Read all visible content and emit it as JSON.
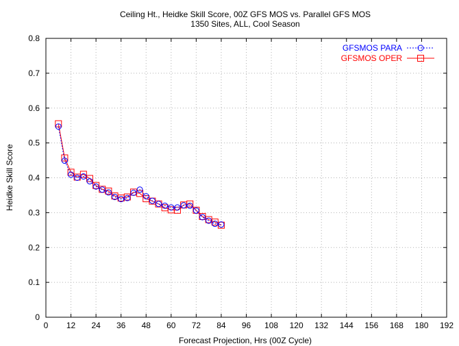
{
  "chart_data": {
    "type": "line",
    "title": "Ceiling Ht., Heidke Skill Score, 00Z GFS MOS vs. Parallel GFS MOS",
    "subtitle": "1350 Sites, ALL, Cool Season",
    "xlabel": "Forecast Projection, Hrs (00Z Cycle)",
    "ylabel": "Heidke Skill Score",
    "xlim": [
      0,
      192
    ],
    "ylim": [
      0,
      0.8
    ],
    "xticks": [
      "0",
      "12",
      "24",
      "36",
      "48",
      "60",
      "72",
      "84",
      "96",
      "108",
      "120",
      "132",
      "144",
      "156",
      "168",
      "180",
      "192"
    ],
    "yticks": [
      "0",
      "0.1",
      "0.2",
      "0.3",
      "0.4",
      "0.5",
      "0.6",
      "0.7",
      "0.8"
    ],
    "grid": true,
    "legend_position": "top-right",
    "x": [
      6,
      9,
      12,
      15,
      18,
      21,
      24,
      27,
      30,
      33,
      36,
      39,
      42,
      45,
      48,
      51,
      54,
      57,
      60,
      63,
      66,
      69,
      72,
      75,
      78,
      81,
      84
    ],
    "series": [
      {
        "name": "GFSMOS PARA",
        "color": "#0000ff",
        "marker": "circle",
        "line_style": "dotted",
        "values": [
          0.547,
          0.449,
          0.409,
          0.4,
          0.404,
          0.39,
          0.375,
          0.366,
          0.358,
          0.345,
          0.339,
          0.342,
          0.357,
          0.366,
          0.347,
          0.334,
          0.325,
          0.32,
          0.315,
          0.315,
          0.321,
          0.32,
          0.306,
          0.287,
          0.277,
          0.268,
          0.266
        ]
      },
      {
        "name": "GFSMOS OPER",
        "color": "#ff0000",
        "marker": "square",
        "line_style": "solid",
        "values": [
          0.555,
          0.457,
          0.416,
          0.402,
          0.41,
          0.398,
          0.378,
          0.367,
          0.362,
          0.348,
          0.342,
          0.345,
          0.359,
          0.355,
          0.34,
          0.333,
          0.325,
          0.314,
          0.308,
          0.307,
          0.322,
          0.325,
          0.307,
          0.289,
          0.28,
          0.273,
          0.264
        ]
      }
    ]
  }
}
